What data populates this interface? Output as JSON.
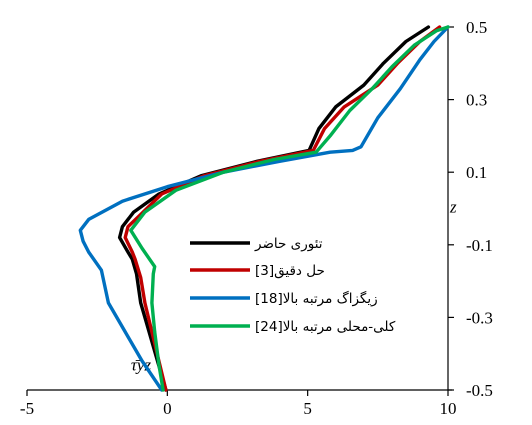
{
  "chart_data": {
    "type": "line",
    "title": "",
    "xlabel": "τ̄yz",
    "ylabel": "z",
    "xlim": [
      -5,
      10
    ],
    "ylim": [
      -0.5,
      0.5
    ],
    "x_ticks": [
      "-5",
      "0",
      "5",
      "10"
    ],
    "y_ticks": [
      "-0.5",
      "-0.3",
      "-0.1",
      "0.1",
      "0.3",
      "0.5"
    ],
    "grid": false,
    "legend_position": "center-right",
    "series": [
      {
        "name": "تئوری حاضر",
        "color": "#000000",
        "points": [
          [
            -0.05,
            -0.5
          ],
          [
            -0.35,
            -0.42
          ],
          [
            -0.65,
            -0.34
          ],
          [
            -0.95,
            -0.26
          ],
          [
            -1.1,
            -0.18
          ],
          [
            -1.25,
            -0.14
          ],
          [
            -1.4,
            -0.12
          ],
          [
            -1.7,
            -0.08
          ],
          [
            -1.6,
            -0.05
          ],
          [
            -1.2,
            -0.01
          ],
          [
            -0.3,
            0.04
          ],
          [
            1.2,
            0.09
          ],
          [
            3.2,
            0.13
          ],
          [
            5.05,
            0.16
          ],
          [
            5.4,
            0.22
          ],
          [
            6.0,
            0.28
          ],
          [
            7.0,
            0.34
          ],
          [
            7.7,
            0.4
          ],
          [
            8.5,
            0.46
          ],
          [
            9.3,
            0.5
          ]
        ]
      },
      {
        "name": "حل دقیق[3]",
        "color": "#c00000",
        "points": [
          [
            -0.05,
            -0.5
          ],
          [
            -0.3,
            -0.42
          ],
          [
            -0.55,
            -0.34
          ],
          [
            -0.8,
            -0.26
          ],
          [
            -0.95,
            -0.19
          ],
          [
            -1.15,
            -0.14
          ],
          [
            -1.25,
            -0.12
          ],
          [
            -1.5,
            -0.08
          ],
          [
            -1.4,
            -0.05
          ],
          [
            -1.0,
            -0.02
          ],
          [
            -0.2,
            0.04
          ],
          [
            1.3,
            0.09
          ],
          [
            3.3,
            0.13
          ],
          [
            5.2,
            0.16
          ],
          [
            5.6,
            0.22
          ],
          [
            6.3,
            0.28
          ],
          [
            7.5,
            0.34
          ],
          [
            8.2,
            0.4
          ],
          [
            9.0,
            0.46
          ],
          [
            9.7,
            0.5
          ]
        ]
      },
      {
        "name": "زیگزاگ مرتبه بالا[18]",
        "color": "#0070c0",
        "points": [
          [
            -0.2,
            -0.5
          ],
          [
            -0.9,
            -0.42
          ],
          [
            -1.5,
            -0.34
          ],
          [
            -2.1,
            -0.26
          ],
          [
            -2.35,
            -0.17
          ],
          [
            -2.8,
            -0.12
          ],
          [
            -3.0,
            -0.09
          ],
          [
            -3.1,
            -0.06
          ],
          [
            -2.8,
            -0.03
          ],
          [
            -1.6,
            0.02
          ],
          [
            0.0,
            0.06
          ],
          [
            2.0,
            0.1
          ],
          [
            4.0,
            0.13
          ],
          [
            5.8,
            0.155
          ],
          [
            6.6,
            0.16
          ],
          [
            6.9,
            0.17
          ],
          [
            7.5,
            0.25
          ],
          [
            8.3,
            0.33
          ],
          [
            9.0,
            0.41
          ],
          [
            9.5,
            0.46
          ],
          [
            10.0,
            0.5
          ]
        ]
      },
      {
        "name": "کلی-محلی مرتبه بالا[24]",
        "color": "#00b050",
        "points": [
          [
            -0.15,
            -0.5
          ],
          [
            -0.3,
            -0.43
          ],
          [
            -0.45,
            -0.34
          ],
          [
            -0.55,
            -0.26
          ],
          [
            -0.5,
            -0.18
          ],
          [
            -0.45,
            -0.16
          ],
          [
            -0.9,
            -0.11
          ],
          [
            -1.3,
            -0.06
          ],
          [
            -0.8,
            -0.01
          ],
          [
            0.3,
            0.05
          ],
          [
            2.0,
            0.1
          ],
          [
            3.8,
            0.135
          ],
          [
            5.3,
            0.155
          ],
          [
            5.8,
            0.2
          ],
          [
            6.5,
            0.27
          ],
          [
            7.3,
            0.33
          ],
          [
            8.0,
            0.39
          ],
          [
            8.8,
            0.45
          ],
          [
            9.6,
            0.49
          ],
          [
            10.0,
            0.5
          ]
        ]
      }
    ]
  }
}
